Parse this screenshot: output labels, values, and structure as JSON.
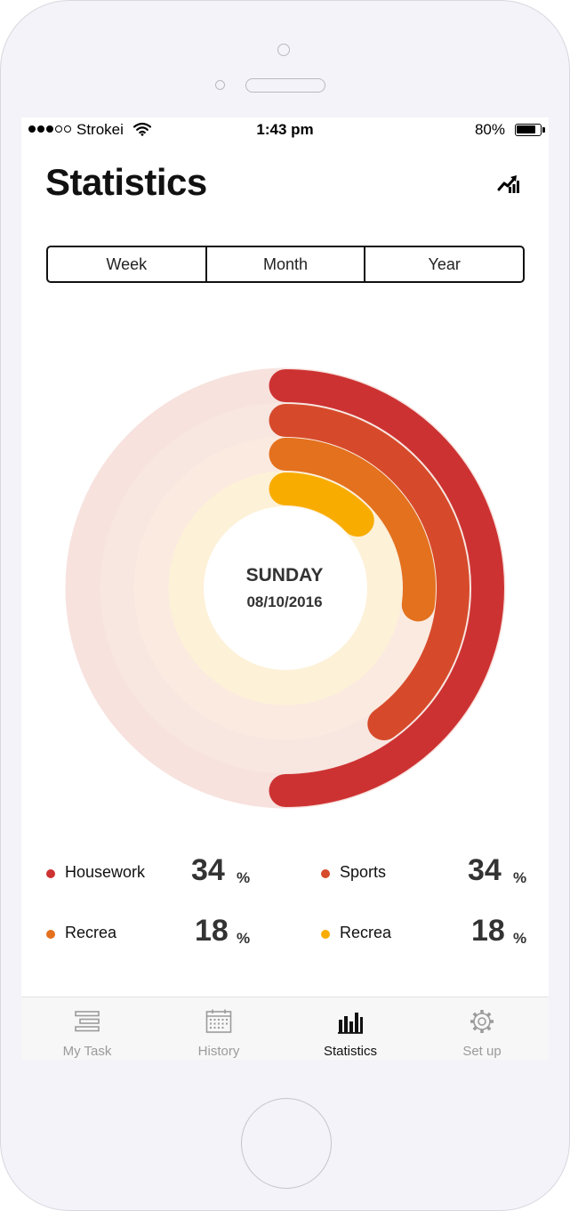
{
  "status_bar": {
    "carrier": "Strokei",
    "time": "1:43 pm",
    "battery": "80%",
    "signal_bars_filled": 3,
    "signal_bars_total": 5
  },
  "header": {
    "title": "Statistics",
    "trend_icon": "trend-chart-icon"
  },
  "segments": {
    "items": [
      "Week",
      "Month",
      "Year"
    ],
    "selected": "Week"
  },
  "activity": {
    "day": "SUNDAY",
    "date": "08/10/2016",
    "rings": [
      {
        "name": "Housework",
        "color": "#cd3232",
        "track": "#f7e2de",
        "progress": 0.5
      },
      {
        "name": "Sports",
        "color": "#d64a2b",
        "track": "#f8e6e0",
        "progress": 0.4
      },
      {
        "name": "Recrea",
        "color": "#e3711e",
        "track": "#fbeae0",
        "progress": 0.27
      },
      {
        "name": "Recrea",
        "color": "#f9ac00",
        "track": "#fdf1d8",
        "progress": 0.13
      }
    ]
  },
  "legend": [
    {
      "label": "Housework",
      "value": "34",
      "unit": "%",
      "color": "#cd3232"
    },
    {
      "label": "Sports",
      "value": "34",
      "unit": "%",
      "color": "#d64a2b"
    },
    {
      "label": "Recrea",
      "value": "18",
      "unit": "%",
      "color": "#e3711e"
    },
    {
      "label": "Recrea",
      "value": "18",
      "unit": "%",
      "color": "#f9ac00"
    }
  ],
  "tabbar": [
    {
      "label": "My Task",
      "icon": "tasks-icon"
    },
    {
      "label": "History",
      "icon": "calendar-icon"
    },
    {
      "label": "Statistics",
      "icon": "bar-chart-icon"
    },
    {
      "label": "Set up",
      "icon": "gear-icon"
    }
  ],
  "tabbar_selected": "Statistics"
}
